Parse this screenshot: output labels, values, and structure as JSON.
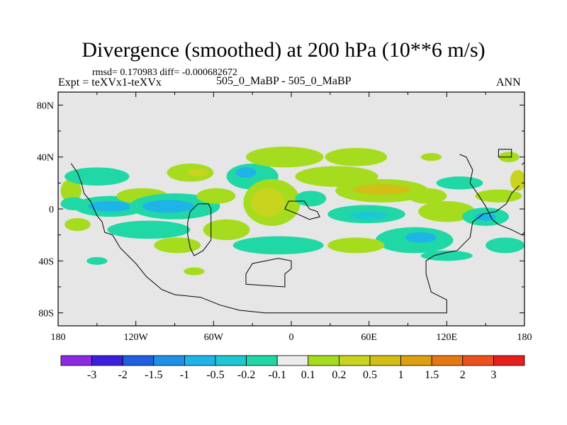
{
  "title": "Divergence (smoothed) at 200 hPa (10**6 m/s)",
  "stats_text": "rmsd= 0.170983 diff= -0.000682672",
  "expt_text": "Expt = teXVx1-teXVx",
  "case_text": "505_0_MaBP - 505_0_MaBP",
  "season_text": "ANN",
  "chart_data": {
    "type": "heatmap",
    "title": "Divergence (smoothed) at 200 hPa (10**6 m/s)",
    "xlim": [
      -180,
      180
    ],
    "ylim": [
      -90,
      90
    ],
    "x_ticks": [
      {
        "value": -180,
        "label": "180"
      },
      {
        "value": -120,
        "label": "120W"
      },
      {
        "value": -60,
        "label": "60W"
      },
      {
        "value": 0,
        "label": "0"
      },
      {
        "value": 60,
        "label": "60E"
      },
      {
        "value": 120,
        "label": "120E"
      },
      {
        "value": 180,
        "label": "180"
      }
    ],
    "y_ticks": [
      {
        "value": 80,
        "label": "80N"
      },
      {
        "value": 40,
        "label": "40N"
      },
      {
        "value": 0,
        "label": "0"
      },
      {
        "value": -40,
        "label": "40S"
      },
      {
        "value": -80,
        "label": "80S"
      }
    ],
    "background_color": "#e6e6e6",
    "colorbar": {
      "colors": [
        "#8a2be2",
        "#3c1fdc",
        "#1f5fe0",
        "#1e90e6",
        "#1fb4e8",
        "#1ec8d2",
        "#1fd8a6",
        "#ececec",
        "#a6dc1e",
        "#c8d41e",
        "#d2be14",
        "#dca010",
        "#e67814",
        "#ec501e",
        "#e61e1e"
      ],
      "labels": [
        "-3",
        "-2",
        "-1.5",
        "-1",
        "-0.5",
        "-0.2",
        "-0.1",
        "0.1",
        "0.2",
        "0.5",
        "1",
        "1.5",
        "2",
        "3"
      ]
    },
    "blobs": [
      {
        "lon": -170,
        "lat": 14,
        "rlon": 8,
        "rlat": 9,
        "level": 8
      },
      {
        "lon": -168,
        "lat": 4,
        "rlon": 10,
        "rlat": 5,
        "level": 6
      },
      {
        "lon": -160,
        "lat": 26,
        "rlon": 12,
        "rlat": 5,
        "level": 8
      },
      {
        "lon": -150,
        "lat": 25,
        "rlon": 25,
        "rlat": 7,
        "level": 6
      },
      {
        "lon": -140,
        "lat": 2,
        "rlon": 28,
        "rlat": 8,
        "level": 6
      },
      {
        "lon": -140,
        "lat": 2,
        "rlon": 17,
        "rlat": 4,
        "level": 4
      },
      {
        "lon": -115,
        "lat": 10,
        "rlon": 20,
        "rlat": 6,
        "level": 8
      },
      {
        "lon": -110,
        "lat": -16,
        "rlon": 32,
        "rlat": 7,
        "level": 6
      },
      {
        "lon": -165,
        "lat": -12,
        "rlon": 10,
        "rlat": 5,
        "level": 8
      },
      {
        "lon": -90,
        "lat": 2,
        "rlon": 35,
        "rlat": 10,
        "level": 6
      },
      {
        "lon": -95,
        "lat": 2,
        "rlon": 20,
        "rlat": 5,
        "level": 4
      },
      {
        "lon": -78,
        "lat": 28,
        "rlon": 18,
        "rlat": 7,
        "level": 8
      },
      {
        "lon": -72,
        "lat": 28,
        "rlon": 8,
        "rlat": 3,
        "level": 9
      },
      {
        "lon": -58,
        "lat": 10,
        "rlon": 15,
        "rlat": 6,
        "level": 8
      },
      {
        "lon": -50,
        "lat": -16,
        "rlon": 18,
        "rlat": 8,
        "level": 8
      },
      {
        "lon": -88,
        "lat": -28,
        "rlon": 18,
        "rlat": 6,
        "level": 8
      },
      {
        "lon": -30,
        "lat": 25,
        "rlon": 20,
        "rlat": 10,
        "level": 6
      },
      {
        "lon": -35,
        "lat": 28,
        "rlon": 8,
        "rlat": 4,
        "level": 4
      },
      {
        "lon": -5,
        "lat": 40,
        "rlon": 30,
        "rlat": 8,
        "level": 8
      },
      {
        "lon": -15,
        "lat": 5,
        "rlon": 22,
        "rlat": 18,
        "level": 8
      },
      {
        "lon": -18,
        "lat": 5,
        "rlon": 13,
        "rlat": 11,
        "level": 9
      },
      {
        "lon": -10,
        "lat": -28,
        "rlon": 35,
        "rlat": 7,
        "level": 6
      },
      {
        "lon": 15,
        "lat": 8,
        "rlon": 12,
        "rlat": 6,
        "level": 6
      },
      {
        "lon": 35,
        "lat": 25,
        "rlon": 32,
        "rlat": 8,
        "level": 8
      },
      {
        "lon": 50,
        "lat": 40,
        "rlon": 24,
        "rlat": 7,
        "level": 8
      },
      {
        "lon": 70,
        "lat": 14,
        "rlon": 36,
        "rlat": 9,
        "level": 8
      },
      {
        "lon": 70,
        "lat": 15,
        "rlon": 22,
        "rlat": 4,
        "level": 10
      },
      {
        "lon": 58,
        "lat": -4,
        "rlon": 30,
        "rlat": 7,
        "level": 6
      },
      {
        "lon": 60,
        "lat": -5,
        "rlon": 15,
        "rlat": 3,
        "level": 5
      },
      {
        "lon": 105,
        "lat": 10,
        "rlon": 15,
        "rlat": 6,
        "level": 8
      },
      {
        "lon": 95,
        "lat": -24,
        "rlon": 30,
        "rlat": 10,
        "level": 6
      },
      {
        "lon": 100,
        "lat": -22,
        "rlon": 12,
        "rlat": 4,
        "level": 4
      },
      {
        "lon": 50,
        "lat": -28,
        "rlon": 22,
        "rlat": 6,
        "level": 8
      },
      {
        "lon": 130,
        "lat": 20,
        "rlon": 18,
        "rlat": 5,
        "level": 6
      },
      {
        "lon": 120,
        "lat": -2,
        "rlon": 22,
        "rlat": 8,
        "level": 8
      },
      {
        "lon": 150,
        "lat": -6,
        "rlon": 18,
        "rlat": 7,
        "level": 6
      },
      {
        "lon": 150,
        "lat": -6,
        "rlon": 8,
        "rlat": 3,
        "level": 4
      },
      {
        "lon": 160,
        "lat": 10,
        "rlon": 18,
        "rlat": 5,
        "level": 8
      },
      {
        "lon": 165,
        "lat": -28,
        "rlon": 15,
        "rlat": 6,
        "level": 6
      },
      {
        "lon": 120,
        "lat": -36,
        "rlon": 20,
        "rlat": 4,
        "level": 6
      },
      {
        "lon": 175,
        "lat": 22,
        "rlon": 6,
        "rlat": 8,
        "level": 9
      },
      {
        "lon": 168,
        "lat": 40,
        "rlon": 8,
        "rlat": 4,
        "level": 8
      },
      {
        "lon": 108,
        "lat": 40,
        "rlon": 8,
        "rlat": 3,
        "level": 8
      },
      {
        "lon": -75,
        "lat": -48,
        "rlon": 8,
        "rlat": 3,
        "level": 8
      },
      {
        "lon": -150,
        "lat": -40,
        "rlon": 8,
        "rlat": 3,
        "level": 6
      }
    ],
    "coastlines": [
      [
        [
          -170,
          35
        ],
        [
          -165,
          28
        ],
        [
          -162,
          20
        ],
        [
          -160,
          12
        ],
        [
          -155,
          6
        ],
        [
          -150,
          -5
        ],
        [
          -146,
          -10
        ],
        [
          -144,
          -18
        ],
        [
          -138,
          -20
        ],
        [
          -132,
          -30
        ],
        [
          -120,
          -42
        ],
        [
          -112,
          -52
        ],
        [
          -100,
          -62
        ],
        [
          -90,
          -66
        ],
        [
          -70,
          -68
        ],
        [
          -55,
          -74
        ],
        [
          -40,
          -78
        ],
        [
          -20,
          -80
        ],
        [
          60,
          -80
        ],
        [
          120,
          -80
        ],
        [
          120,
          -70
        ],
        [
          108,
          -64
        ],
        [
          104,
          -50
        ],
        [
          104,
          -40
        ],
        [
          110,
          -36
        ],
        [
          118,
          -34
        ],
        [
          128,
          -32
        ],
        [
          138,
          -22
        ],
        [
          140,
          -10
        ],
        [
          148,
          -4
        ],
        [
          158,
          -2
        ],
        [
          166,
          4
        ],
        [
          170,
          12
        ],
        [
          176,
          18
        ]
      ],
      [
        [
          -80,
          -10
        ],
        [
          -78,
          -2
        ],
        [
          -72,
          4
        ],
        [
          -64,
          4
        ],
        [
          -62,
          0
        ],
        [
          -62,
          -24
        ],
        [
          -68,
          -32
        ],
        [
          -75,
          -36
        ],
        [
          -78,
          -30
        ],
        [
          -80,
          -20
        ],
        [
          -80,
          -10
        ]
      ],
      [
        [
          -35,
          -50
        ],
        [
          -35,
          -58
        ],
        [
          -5,
          -60
        ],
        [
          -5,
          -50
        ],
        [
          0,
          -46
        ],
        [
          0,
          -40
        ],
        [
          -10,
          -38
        ],
        [
          -30,
          -42
        ],
        [
          -35,
          -50
        ]
      ],
      [
        [
          -5,
          0
        ],
        [
          -2,
          6
        ],
        [
          10,
          6
        ],
        [
          14,
          0
        ],
        [
          20,
          -2
        ],
        [
          22,
          -6
        ],
        [
          14,
          -8
        ],
        [
          5,
          -4
        ],
        [
          -5,
          0
        ]
      ],
      [
        [
          130,
          42
        ],
        [
          135,
          40
        ],
        [
          140,
          30
        ],
        [
          138,
          20
        ],
        [
          145,
          10
        ],
        [
          150,
          2
        ],
        [
          155,
          -8
        ],
        [
          160,
          -12
        ],
        [
          170,
          -16
        ],
        [
          178,
          -20
        ],
        [
          180,
          -18
        ]
      ],
      [
        [
          160,
          46
        ],
        [
          160,
          40
        ],
        [
          170,
          40
        ],
        [
          170,
          46
        ],
        [
          160,
          46
        ]
      ],
      [
        [
          178,
          34
        ],
        [
          180,
          36
        ]
      ]
    ]
  }
}
